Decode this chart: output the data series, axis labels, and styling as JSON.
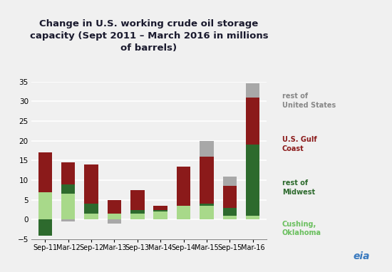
{
  "title": "Change in U.S. working crude oil storage\ncapacity (Sept 2011 – March 2016 in millions\nof barrels)",
  "categories": [
    "Sep-11",
    "Mar-12",
    "Sep-12",
    "Mar-13",
    "Sep-13",
    "Mar-14",
    "Sep-14",
    "Mar-15",
    "Sep-15",
    "Mar-16"
  ],
  "series": {
    "cushing_oklahoma": [
      7.0,
      6.5,
      1.5,
      1.5,
      1.5,
      2.0,
      3.5,
      3.5,
      1.0,
      1.0
    ],
    "rest_of_midwest": [
      -4.0,
      2.5,
      2.5,
      0.0,
      1.0,
      0.5,
      0.0,
      0.5,
      2.0,
      18.0
    ],
    "us_gulf_coast": [
      10.0,
      5.5,
      10.0,
      3.5,
      5.0,
      1.0,
      10.0,
      12.0,
      5.5,
      12.0
    ],
    "rest_of_us": [
      0.0,
      -0.5,
      0.0,
      -1.0,
      0.0,
      0.0,
      0.0,
      4.0,
      2.5,
      3.5
    ]
  },
  "colors": {
    "cushing_oklahoma": "#a8d98a",
    "rest_of_midwest": "#2d6a2d",
    "us_gulf_coast": "#8b1a1a",
    "rest_of_us": "#a8a8a8"
  },
  "legend_text_colors": {
    "rest_of_us": "#888888",
    "us_gulf_coast": "#8b1a1a",
    "rest_of_midwest": "#2d6a2d",
    "cushing_oklahoma": "#6abf5e"
  },
  "legend_labels": {
    "rest_of_us": "rest of\nUnited States",
    "us_gulf_coast": "U.S. Gulf\nCoast",
    "rest_of_midwest": "rest of\nMidwest",
    "cushing_oklahoma": "Cushing,\nOklahoma"
  },
  "ylim": [
    -5,
    35
  ],
  "yticks": [
    -5,
    0,
    5,
    10,
    15,
    20,
    25,
    30,
    35
  ],
  "background_color": "#f0f0f0",
  "grid_color": "#ffffff",
  "title_fontsize": 9.5,
  "bar_width": 0.6,
  "figsize": [
    5.5,
    3.82
  ],
  "dpi": 100
}
